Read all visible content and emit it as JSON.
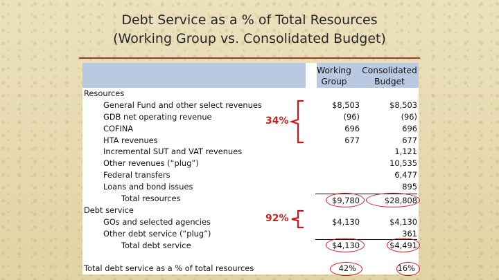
{
  "title": {
    "line1": "Debt Service as a % of Total Resources",
    "line2": "(Working Group vs. Consolidated Budget)"
  },
  "columns": {
    "working_group": {
      "line1": "Working",
      "line2": "Group"
    },
    "consolidated": {
      "line1": "Consolidated",
      "line2": "Budget"
    }
  },
  "rows": [
    {
      "label": "Resources",
      "wg": "",
      "cb": ""
    },
    {
      "label": "General Fund and other select revenues",
      "wg": "$8,503",
      "cb": "$8,503"
    },
    {
      "label": "GDB net operating revenue",
      "wg": "(96)",
      "cb": "(96)"
    },
    {
      "label": "COFINA",
      "wg": "696",
      "cb": "696"
    },
    {
      "label": "HTA revenues",
      "wg": "677",
      "cb": "677"
    },
    {
      "label": "Incremental SUT and VAT revenues",
      "wg": "",
      "cb": "1,121"
    },
    {
      "label": "Other revenues (“plug”)",
      "wg": "",
      "cb": "10,535"
    },
    {
      "label": "Federal transfers",
      "wg": "",
      "cb": "6,477"
    },
    {
      "label": "Loans and bond issues",
      "wg": "",
      "cb": "895"
    },
    {
      "label": "Total resources",
      "wg": "$9,780",
      "cb": "$28,808"
    },
    {
      "label": "Debt service",
      "wg": "",
      "cb": ""
    },
    {
      "label": "GOs and selected agencies",
      "wg": "$4,130",
      "cb": "$4,130"
    },
    {
      "label": "Other debt service (“plug”)",
      "wg": "",
      "cb": "361"
    },
    {
      "label": "Total debt service",
      "wg": "$4,130",
      "cb": "$4,491"
    },
    {
      "label": "Total debt service as a % of total resources",
      "wg": "42%",
      "cb": "16%"
    }
  ],
  "callouts": {
    "resources_pct": "34%",
    "debt_pct": "92%"
  },
  "colors": {
    "header_fill": "#b9c9e2",
    "title_rule": "#9c3a1f",
    "callout_red": "#c0261d",
    "oval_red": "#d0141a"
  }
}
